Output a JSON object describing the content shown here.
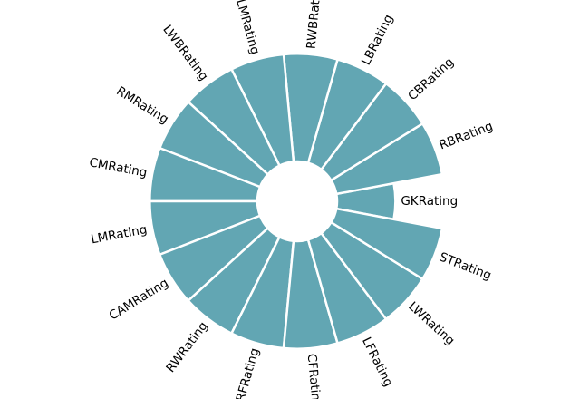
{
  "chart_data": {
    "type": "bar",
    "polar": true,
    "title": "",
    "categories": [
      "GKRating",
      "RBRating",
      "CBRating",
      "LBRating",
      "RWBRating",
      "LMRating",
      "LWBRating",
      "RMRating",
      "CMRating",
      "LMRating",
      "CAMRating",
      "RWRating",
      "RFRating",
      "CFRating",
      "LFRating",
      "LWRating",
      "STRating"
    ],
    "values": [
      45,
      83,
      83,
      83,
      83,
      83,
      83,
      83,
      83,
      83,
      83,
      83,
      83,
      83,
      83,
      83,
      83
    ],
    "rlim": [
      0,
      100
    ],
    "bar_color": "#62a6b3",
    "edge_color": "#ffffff",
    "grid": false,
    "legend": "none"
  }
}
